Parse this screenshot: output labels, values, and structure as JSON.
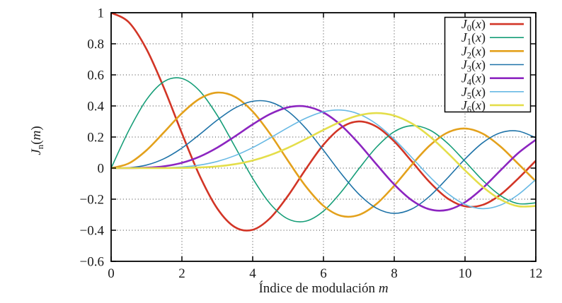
{
  "chart_data": {
    "type": "line",
    "title": "",
    "xlabel": "Índice de modulación m",
    "xlabel_text": "Índice de modulación",
    "xlabel_var": "m",
    "ylabel": "J_n(m)",
    "ylabel_parts": {
      "base": "J",
      "sub": "n",
      "arg": "m"
    },
    "xlim": [
      0,
      12
    ],
    "ylim": [
      -0.6,
      1
    ],
    "grid": "dotted",
    "grid_color": "#3a3a3a",
    "axis_color": "#000000",
    "background_color": "#ffffff",
    "legend_position": "top-right",
    "xticks": {
      "values": [
        0,
        2,
        4,
        6,
        8,
        10,
        12
      ],
      "labels": [
        "0",
        "2",
        "4",
        "6",
        "8",
        "10",
        "12"
      ]
    },
    "yticks": {
      "values": [
        1,
        0.8,
        0.6,
        0.4,
        0.2,
        0,
        -0.2,
        -0.4,
        -0.6
      ],
      "labels": [
        "1",
        "0.8",
        "0.6",
        "0.4",
        "0.2",
        "0",
        "−0.2",
        "−0.4",
        "−0.6"
      ]
    },
    "x": [
      0,
      0.5,
      1,
      1.5,
      2,
      2.5,
      3,
      3.5,
      4,
      4.5,
      5,
      5.5,
      6,
      6.5,
      7,
      7.5,
      8,
      8.5,
      9,
      9.5,
      10,
      10.5,
      11,
      11.5,
      12
    ],
    "series": [
      {
        "name": "J0(x)",
        "label": {
          "base": "J",
          "sub": "0",
          "arg": "x"
        },
        "color": "#d23526",
        "width": 2.6,
        "values": [
          1,
          0.9385,
          0.7652,
          0.5118,
          0.2239,
          -0.0484,
          -0.2601,
          -0.3801,
          -0.3971,
          -0.3205,
          -0.1776,
          -0.0068,
          0.1506,
          0.2601,
          0.3001,
          0.2663,
          0.1717,
          0.0419,
          -0.0903,
          -0.1939,
          -0.2459,
          -0.2366,
          -0.1712,
          -0.0677,
          0.0477
        ]
      },
      {
        "name": "J1(x)",
        "label": {
          "base": "J",
          "sub": "1",
          "arg": "x"
        },
        "color": "#169e78",
        "width": 1.6,
        "values": [
          0,
          0.2423,
          0.4401,
          0.5579,
          0.5767,
          0.4971,
          0.3391,
          0.1374,
          -0.066,
          -0.2311,
          -0.3276,
          -0.3414,
          -0.2767,
          -0.1538,
          -0.0047,
          0.1352,
          0.2346,
          0.2731,
          0.2453,
          0.1613,
          0.0435,
          -0.0789,
          -0.1768,
          -0.2284,
          -0.2234
        ]
      },
      {
        "name": "J2(x)",
        "label": {
          "base": "J",
          "sub": "2",
          "arg": "x"
        },
        "color": "#e3a11c",
        "width": 2.6,
        "values": [
          0,
          0.0306,
          0.1149,
          0.2321,
          0.3528,
          0.4461,
          0.4861,
          0.4586,
          0.3641,
          0.2178,
          0.0466,
          -0.1173,
          -0.2429,
          -0.3074,
          -0.3014,
          -0.2303,
          -0.113,
          0.0223,
          0.1448,
          0.2279,
          0.2546,
          0.2216,
          0.139,
          0.028,
          -0.0849
        ]
      },
      {
        "name": "J3(x)",
        "label": {
          "base": "J",
          "sub": "3",
          "arg": "x"
        },
        "color": "#1f73a8",
        "width": 1.6,
        "values": [
          0,
          0.0026,
          0.0196,
          0.061,
          0.1289,
          0.2166,
          0.3091,
          0.3867,
          0.4302,
          0.4247,
          0.3648,
          0.2561,
          0.1148,
          -0.0353,
          -0.1676,
          -0.2581,
          -0.2911,
          -0.2626,
          -0.1809,
          -0.0653,
          0.0584,
          0.1633,
          0.2273,
          0.2381,
          0.1951
        ]
      },
      {
        "name": "J4(x)",
        "label": {
          "base": "J",
          "sub": "4",
          "arg": "x"
        },
        "color": "#8c25c0",
        "width": 2.6,
        "values": [
          0,
          0.0002,
          0.0025,
          0.0118,
          0.034,
          0.0738,
          0.132,
          0.2044,
          0.2811,
          0.3484,
          0.3912,
          0.3967,
          0.3576,
          0.2748,
          0.1578,
          0.0238,
          -0.1054,
          -0.2077,
          -0.2655,
          -0.2691,
          -0.2196,
          -0.1283,
          -0.015,
          0.0962,
          0.1825
        ]
      },
      {
        "name": "J5(x)",
        "label": {
          "base": "J",
          "sub": "5",
          "arg": "x"
        },
        "color": "#68b9e4",
        "width": 1.6,
        "values": [
          0,
          0,
          0.0002,
          0.0018,
          0.007,
          0.0195,
          0.043,
          0.0804,
          0.1321,
          0.1947,
          0.2611,
          0.3209,
          0.3621,
          0.3736,
          0.3479,
          0.2835,
          0.1858,
          0.0671,
          -0.055,
          -0.1613,
          -0.2341,
          -0.2611,
          -0.2383,
          -0.1712,
          -0.0735
        ]
      },
      {
        "name": "J6(x)",
        "label": {
          "base": "J",
          "sub": "6",
          "arg": "x"
        },
        "color": "#e4de4a",
        "width": 2.6,
        "values": [
          0,
          0,
          0,
          0.0002,
          0.0012,
          0.0041,
          0.0114,
          0.0253,
          0.0491,
          0.0843,
          0.131,
          0.1868,
          0.2458,
          0.2999,
          0.3392,
          0.3541,
          0.3376,
          0.2867,
          0.2043,
          0.0993,
          -0.0145,
          -0.1203,
          -0.2016,
          -0.2451,
          -0.2437
        ]
      }
    ]
  }
}
